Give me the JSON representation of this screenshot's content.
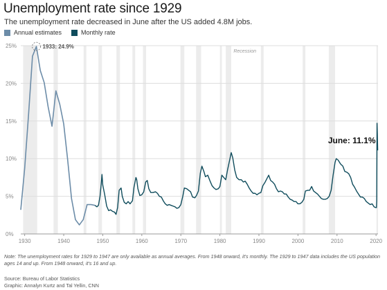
{
  "header": {
    "title": "Unemployment rate since 1929",
    "subtitle": "The unemployment rate decreased in June after the US added 4.8M jobs."
  },
  "legend": {
    "annual": "Annual estimates",
    "monthly": "Monthly rate"
  },
  "annotations": {
    "peak": "1933: 24.9%",
    "latest": "June: 11.1%",
    "recession": "Recession"
  },
  "footer": {
    "note": "Note: The unemployment rates for 1929 to 1947 are only available as annual averages. From 1948 onward, it's monthly. The 1929 to 1947 data includes the US population ages 14 and up. From 1948 onward, it's 16 and up.",
    "source": "Source: Bureau of Labor Statistics",
    "credit": "Graphic: Annalyn Kurtz and Tal Yellin, CNN"
  },
  "colors": {
    "annual": "#6c8ca8",
    "monthly": "#0f4c5c",
    "recession": "#ececec",
    "grid": "#dddddd"
  },
  "chart_data": {
    "type": "line",
    "ylim": [
      0,
      25
    ],
    "xlim": [
      1929,
      2020.5
    ],
    "yticks": [
      {
        "v": 0,
        "label": "0%"
      },
      {
        "v": 5,
        "label": "5%"
      },
      {
        "v": 10,
        "label": "10%"
      },
      {
        "v": 15,
        "label": "15%"
      },
      {
        "v": 20,
        "label": "20%"
      },
      {
        "v": 25,
        "label": "25%"
      }
    ],
    "xticks": [
      {
        "v": 1930,
        "label": "1930"
      },
      {
        "v": 1940,
        "label": "1940"
      },
      {
        "v": 1950,
        "label": "1950"
      },
      {
        "v": 1960,
        "label": "1960"
      },
      {
        "v": 1970,
        "label": "1970"
      },
      {
        "v": 1980,
        "label": "1980"
      },
      {
        "v": 1990,
        "label": "1990"
      },
      {
        "v": 2000,
        "label": "2000"
      },
      {
        "v": 2010,
        "label": "2010"
      },
      {
        "v": 2020,
        "label": "2020"
      }
    ],
    "recessions": [
      [
        1929.6,
        1933.2
      ],
      [
        1937.4,
        1938.5
      ],
      [
        1945.1,
        1945.8
      ],
      [
        1948.9,
        1949.8
      ],
      [
        1953.5,
        1954.4
      ],
      [
        1957.6,
        1958.3
      ],
      [
        1960.3,
        1961.1
      ],
      [
        1969.9,
        1970.9
      ],
      [
        1973.9,
        1975.2
      ],
      [
        1980.0,
        1980.5
      ],
      [
        1981.5,
        1982.9
      ],
      [
        1990.5,
        1991.2
      ],
      [
        2001.2,
        2001.9
      ],
      [
        2007.9,
        2009.5
      ],
      [
        2020.1,
        2020.5
      ]
    ],
    "series": [
      {
        "name": "Annual estimates",
        "points": [
          [
            1929,
            3.2
          ],
          [
            1930,
            8.7
          ],
          [
            1931,
            15.9
          ],
          [
            1932,
            23.6
          ],
          [
            1933,
            24.9
          ],
          [
            1934,
            21.7
          ],
          [
            1935,
            20.1
          ],
          [
            1936,
            16.9
          ],
          [
            1937,
            14.3
          ],
          [
            1938,
            19.0
          ],
          [
            1939,
            17.2
          ],
          [
            1940,
            14.6
          ],
          [
            1941,
            9.9
          ],
          [
            1942,
            4.7
          ],
          [
            1943,
            1.9
          ],
          [
            1944,
            1.2
          ],
          [
            1945,
            1.9
          ],
          [
            1946,
            3.9
          ],
          [
            1947,
            3.9
          ],
          [
            1948,
            3.8
          ]
        ]
      },
      {
        "name": "Monthly rate",
        "points": [
          [
            1948.0,
            3.8
          ],
          [
            1948.5,
            3.6
          ],
          [
            1948.9,
            3.8
          ],
          [
            1949.3,
            5.0
          ],
          [
            1949.6,
            6.6
          ],
          [
            1949.8,
            7.9
          ],
          [
            1950.0,
            6.5
          ],
          [
            1950.5,
            5.2
          ],
          [
            1951.0,
            3.7
          ],
          [
            1951.5,
            3.1
          ],
          [
            1952.0,
            3.2
          ],
          [
            1952.5,
            3.0
          ],
          [
            1953.0,
            2.9
          ],
          [
            1953.4,
            2.6
          ],
          [
            1953.8,
            3.5
          ],
          [
            1954.2,
            5.8
          ],
          [
            1954.7,
            6.1
          ],
          [
            1955.0,
            5.0
          ],
          [
            1955.5,
            4.2
          ],
          [
            1956.0,
            4.0
          ],
          [
            1956.5,
            4.3
          ],
          [
            1957.0,
            4.0
          ],
          [
            1957.6,
            4.4
          ],
          [
            1958.0,
            6.2
          ],
          [
            1958.5,
            7.5
          ],
          [
            1958.7,
            7.2
          ],
          [
            1959.0,
            6.0
          ],
          [
            1959.5,
            5.1
          ],
          [
            1960.0,
            5.2
          ],
          [
            1960.5,
            5.6
          ],
          [
            1961.0,
            6.9
          ],
          [
            1961.4,
            7.1
          ],
          [
            1961.8,
            6.0
          ],
          [
            1962.3,
            5.5
          ],
          [
            1962.9,
            5.5
          ],
          [
            1963.5,
            5.6
          ],
          [
            1964.0,
            5.4
          ],
          [
            1964.5,
            5.0
          ],
          [
            1965.0,
            4.9
          ],
          [
            1965.5,
            4.4
          ],
          [
            1966.0,
            4.0
          ],
          [
            1966.5,
            3.8
          ],
          [
            1967.0,
            3.9
          ],
          [
            1967.5,
            3.8
          ],
          [
            1968.0,
            3.7
          ],
          [
            1968.5,
            3.6
          ],
          [
            1969.0,
            3.4
          ],
          [
            1969.5,
            3.5
          ],
          [
            1970.0,
            3.9
          ],
          [
            1970.5,
            5.0
          ],
          [
            1970.9,
            6.1
          ],
          [
            1971.5,
            6.0
          ],
          [
            1972.0,
            5.8
          ],
          [
            1972.5,
            5.6
          ],
          [
            1973.0,
            4.9
          ],
          [
            1973.6,
            4.8
          ],
          [
            1974.0,
            5.1
          ],
          [
            1974.5,
            5.7
          ],
          [
            1975.0,
            8.1
          ],
          [
            1975.4,
            9.0
          ],
          [
            1975.9,
            8.3
          ],
          [
            1976.3,
            7.6
          ],
          [
            1976.9,
            7.8
          ],
          [
            1977.5,
            7.0
          ],
          [
            1978.0,
            6.4
          ],
          [
            1978.5,
            6.1
          ],
          [
            1979.0,
            5.9
          ],
          [
            1979.6,
            6.0
          ],
          [
            1980.0,
            6.3
          ],
          [
            1980.5,
            7.8
          ],
          [
            1981.0,
            7.5
          ],
          [
            1981.5,
            7.2
          ],
          [
            1982.0,
            8.6
          ],
          [
            1982.5,
            9.8
          ],
          [
            1982.9,
            10.8
          ],
          [
            1983.3,
            10.1
          ],
          [
            1983.8,
            8.5
          ],
          [
            1984.3,
            7.5
          ],
          [
            1984.9,
            7.2
          ],
          [
            1985.5,
            7.2
          ],
          [
            1986.0,
            6.9
          ],
          [
            1986.5,
            7.0
          ],
          [
            1987.0,
            6.6
          ],
          [
            1987.5,
            6.1
          ],
          [
            1988.0,
            5.7
          ],
          [
            1988.5,
            5.4
          ],
          [
            1989.0,
            5.4
          ],
          [
            1989.5,
            5.2
          ],
          [
            1990.0,
            5.4
          ],
          [
            1990.5,
            5.5
          ],
          [
            1991.0,
            6.4
          ],
          [
            1991.5,
            6.8
          ],
          [
            1992.0,
            7.3
          ],
          [
            1992.5,
            7.8
          ],
          [
            1993.0,
            7.1
          ],
          [
            1993.5,
            6.9
          ],
          [
            1994.0,
            6.6
          ],
          [
            1994.5,
            6.0
          ],
          [
            1995.0,
            5.6
          ],
          [
            1995.5,
            5.7
          ],
          [
            1996.0,
            5.6
          ],
          [
            1996.5,
            5.3
          ],
          [
            1997.0,
            5.3
          ],
          [
            1997.5,
            4.9
          ],
          [
            1998.0,
            4.6
          ],
          [
            1998.5,
            4.5
          ],
          [
            1999.0,
            4.3
          ],
          [
            1999.5,
            4.3
          ],
          [
            2000.0,
            4.0
          ],
          [
            2000.5,
            4.0
          ],
          [
            2001.0,
            4.2
          ],
          [
            2001.5,
            4.6
          ],
          [
            2001.9,
            5.7
          ],
          [
            2002.5,
            5.8
          ],
          [
            2003.0,
            5.8
          ],
          [
            2003.5,
            6.3
          ],
          [
            2004.0,
            5.7
          ],
          [
            2004.5,
            5.5
          ],
          [
            2005.0,
            5.3
          ],
          [
            2005.5,
            5.0
          ],
          [
            2006.0,
            4.7
          ],
          [
            2006.5,
            4.6
          ],
          [
            2007.0,
            4.6
          ],
          [
            2007.5,
            4.7
          ],
          [
            2008.0,
            5.0
          ],
          [
            2008.5,
            5.8
          ],
          [
            2009.0,
            7.8
          ],
          [
            2009.5,
            9.5
          ],
          [
            2009.8,
            10.0
          ],
          [
            2010.3,
            9.8
          ],
          [
            2010.9,
            9.3
          ],
          [
            2011.5,
            9.0
          ],
          [
            2012.0,
            8.3
          ],
          [
            2012.5,
            8.2
          ],
          [
            2013.0,
            8.0
          ],
          [
            2013.5,
            7.5
          ],
          [
            2014.0,
            6.6
          ],
          [
            2014.5,
            6.2
          ],
          [
            2015.0,
            5.7
          ],
          [
            2015.5,
            5.3
          ],
          [
            2016.0,
            4.9
          ],
          [
            2016.5,
            4.9
          ],
          [
            2017.0,
            4.7
          ],
          [
            2017.5,
            4.3
          ],
          [
            2018.0,
            4.1
          ],
          [
            2018.5,
            3.9
          ],
          [
            2019.0,
            4.0
          ],
          [
            2019.5,
            3.6
          ],
          [
            2019.9,
            3.5
          ],
          [
            2020.1,
            3.5
          ],
          [
            2020.17,
            4.4
          ],
          [
            2020.25,
            14.7
          ],
          [
            2020.33,
            13.3
          ],
          [
            2020.42,
            11.1
          ]
        ]
      }
    ]
  }
}
